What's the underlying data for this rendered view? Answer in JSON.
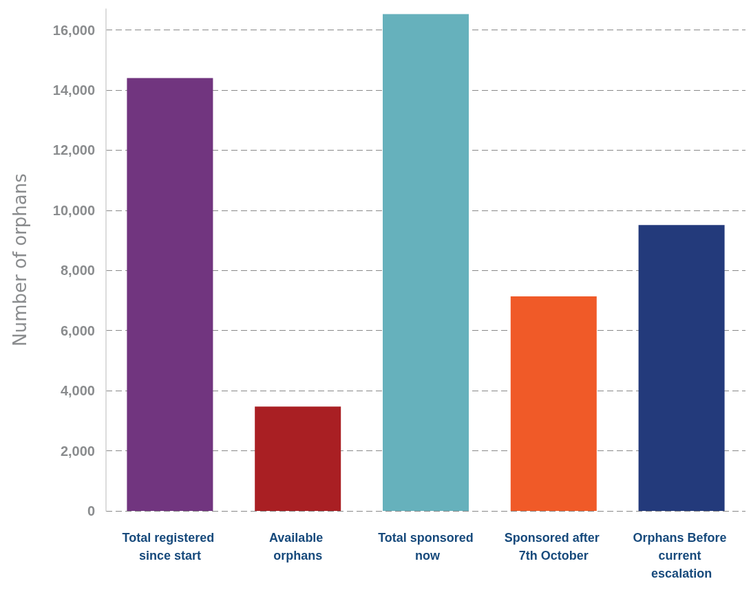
{
  "chart_data": {
    "type": "bar",
    "ylabel": "Number of orphans",
    "categories": [
      "Total registered since start",
      "Available orphans",
      "Total sponsored now",
      "Sponsored after 7th October",
      "Orphans Before current escalation"
    ],
    "values": [
      14400,
      3470,
      16530,
      7140,
      9510
    ],
    "colors": [
      "#71357f",
      "#a91f23",
      "#66b1bc",
      "#f05a28",
      "#233a7b"
    ],
    "ylim": [
      0,
      16700
    ],
    "yticks": [
      0,
      {
        "value": 2000,
        "label": "2,000"
      },
      {
        "value": 4000,
        "label": "4,000"
      },
      {
        "value": 6000,
        "label": "6,000"
      },
      {
        "value": 8000,
        "label": "8,000"
      },
      {
        "value": 10000,
        "label": "10,000"
      },
      {
        "value": 12000,
        "label": "12,000"
      },
      {
        "value": 14000,
        "label": "14,000"
      },
      {
        "value": 16000,
        "label": "16,000"
      }
    ],
    "grid": "y"
  }
}
